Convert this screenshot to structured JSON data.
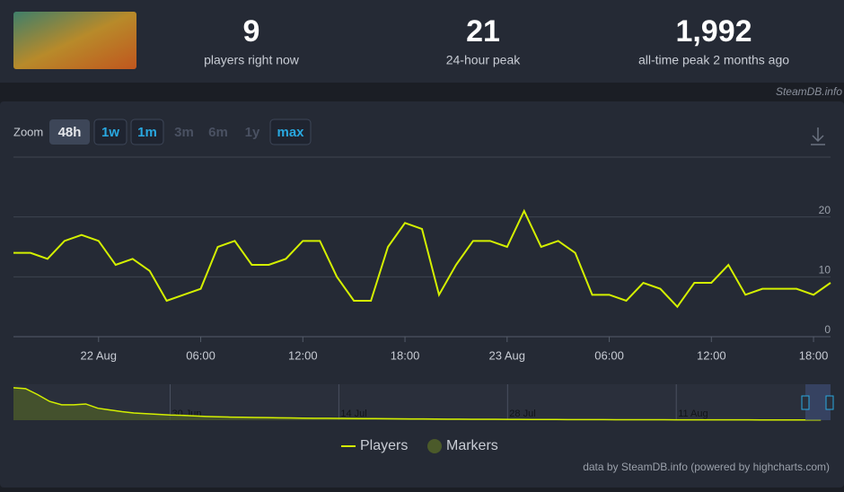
{
  "header": {
    "stats": [
      {
        "value": "9",
        "label": "players right now"
      },
      {
        "value": "21",
        "label": "24-hour peak"
      },
      {
        "value": "1,992",
        "label": "all-time peak 2 months ago"
      }
    ],
    "watermark": "SteamDB.info"
  },
  "zoom": {
    "label": "Zoom",
    "buttons": [
      {
        "text": "48h",
        "state": "active"
      },
      {
        "text": "1w",
        "state": "enabled"
      },
      {
        "text": "1m",
        "state": "enabled"
      },
      {
        "text": "3m",
        "state": "disabled"
      },
      {
        "text": "6m",
        "state": "disabled"
      },
      {
        "text": "1y",
        "state": "disabled"
      },
      {
        "text": "max",
        "state": "enabled"
      }
    ]
  },
  "chart_data": {
    "type": "line",
    "categories": [
      null,
      null,
      null,
      null,
      null,
      "22 Aug",
      null,
      null,
      null,
      null,
      null,
      "06:00",
      null,
      null,
      null,
      null,
      null,
      "12:00",
      null,
      null,
      null,
      null,
      null,
      "18:00",
      null,
      null,
      null,
      null,
      null,
      "23 Aug",
      null,
      null,
      null,
      null,
      null,
      "06:00",
      null,
      null,
      null,
      null,
      null,
      "12:00",
      null,
      null,
      null,
      null,
      null,
      "18:00",
      null
    ],
    "series": [
      {
        "name": "Players",
        "color": "#d4f000",
        "values": [
          14,
          14,
          13,
          16,
          17,
          16,
          12,
          13,
          11,
          6,
          7,
          8,
          15,
          16,
          12,
          12,
          13,
          16,
          16,
          10,
          6,
          6,
          15,
          19,
          18,
          7,
          12,
          16,
          16,
          15,
          21,
          15,
          16,
          14,
          7,
          7,
          6,
          9,
          8,
          5,
          9,
          9,
          12,
          7,
          8,
          8,
          8,
          7,
          9
        ]
      }
    ],
    "markers": {
      "name": "Markers",
      "color": "#4b5a2a"
    },
    "ylim": [
      0,
      30
    ],
    "yticks": [
      0,
      10,
      20
    ],
    "grid": true,
    "navigator": {
      "categories": [
        null,
        null,
        null,
        null,
        null,
        null,
        null,
        null,
        null,
        null,
        null,
        null,
        null,
        "30 Jun",
        null,
        null,
        null,
        null,
        null,
        null,
        null,
        null,
        null,
        null,
        null,
        null,
        null,
        "14 Jul",
        null,
        null,
        null,
        null,
        null,
        null,
        null,
        null,
        null,
        null,
        null,
        null,
        null,
        "28 Jul",
        null,
        null,
        null,
        null,
        null,
        null,
        null,
        null,
        null,
        null,
        null,
        null,
        null,
        "11 Aug",
        null,
        null,
        null,
        null,
        null,
        null,
        null,
        null,
        null,
        null,
        null,
        null
      ],
      "values": [
        1900,
        1850,
        1500,
        1100,
        900,
        900,
        950,
        700,
        600,
        500,
        420,
        380,
        340,
        300,
        280,
        250,
        220,
        200,
        180,
        170,
        160,
        150,
        140,
        130,
        120,
        115,
        110,
        105,
        100,
        95,
        90,
        85,
        80,
        75,
        70,
        65,
        60,
        58,
        55,
        52,
        50,
        48,
        45,
        42,
        40,
        38,
        36,
        34,
        32,
        30,
        28,
        27,
        26,
        25,
        24,
        23,
        22,
        21,
        20,
        19,
        18,
        17,
        16,
        15,
        15,
        14,
        13,
        12
      ],
      "ylim": [
        0,
        2000
      ]
    },
    "credit": "data by SteamDB.info (powered by highcharts.com)"
  }
}
